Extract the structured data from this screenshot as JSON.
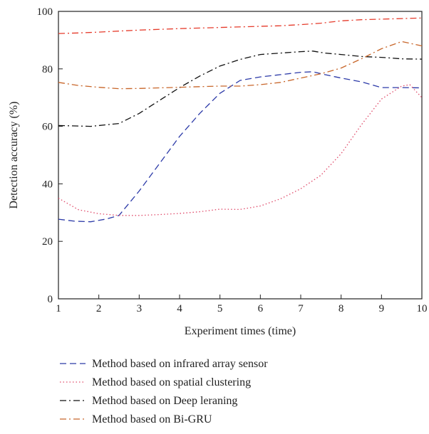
{
  "chart_data": {
    "type": "line",
    "xlabel": "Experiment times (time)",
    "ylabel": "Detection accuracy (%)",
    "xlim": [
      1,
      10
    ],
    "ylim": [
      0,
      100
    ],
    "xticks": [
      1,
      2,
      3,
      4,
      5,
      6,
      7,
      8,
      9,
      10
    ],
    "yticks": [
      0,
      20,
      40,
      60,
      80,
      100
    ],
    "grid": false,
    "legend_position": "bottom",
    "series": [
      {
        "name": "Method based on infrared array sensor",
        "color": "#2c3aa8",
        "dash": "dashed",
        "x": [
          1,
          1.4,
          1.8,
          2.2,
          2.5,
          3,
          3.5,
          4,
          4.5,
          5,
          5.5,
          6,
          6.5,
          7,
          7.3,
          7.6,
          8,
          8.5,
          9,
          9.5,
          10
        ],
        "y": [
          27.7,
          27.0,
          26.8,
          27.8,
          29.0,
          37.5,
          47.0,
          56.5,
          64.5,
          71.5,
          76.0,
          77.2,
          78.0,
          78.8,
          79.0,
          78.0,
          76.8,
          75.5,
          73.5,
          73.5,
          73.4
        ]
      },
      {
        "name": "Method based on spatial clustering",
        "color": "#e04a6a",
        "dash": "dotted",
        "x": [
          1,
          1.5,
          2,
          2.5,
          3,
          3.5,
          4,
          4.5,
          5,
          5.5,
          6,
          6.5,
          7,
          7.5,
          8,
          8.5,
          9,
          9.5,
          9.7,
          10
        ],
        "y": [
          35.0,
          31.0,
          29.6,
          29.0,
          29.0,
          29.3,
          29.7,
          30.3,
          31.2,
          31.1,
          32.3,
          34.8,
          38.3,
          43.0,
          50.5,
          60.5,
          69.5,
          74.0,
          74.5,
          70.0
        ]
      },
      {
        "name": "Method based on Deep leraning",
        "color": "#111111",
        "dash": "dashdot",
        "x": [
          1,
          1.8,
          2.5,
          3,
          3.5,
          4,
          4.5,
          5,
          5.5,
          6,
          6.5,
          7,
          7.3,
          7.6,
          8,
          8.5,
          9,
          9.5,
          10
        ],
        "y": [
          60.3,
          60.0,
          61.0,
          64.5,
          69.0,
          73.5,
          77.5,
          81.0,
          83.3,
          85.0,
          85.5,
          86.0,
          86.2,
          85.5,
          85.0,
          84.3,
          84.0,
          83.5,
          83.4
        ]
      },
      {
        "name": "Method based on Bi-GRU",
        "color": "#c8662a",
        "dash": "dashdot",
        "x": [
          1,
          1.5,
          2,
          2.5,
          3,
          3.5,
          4,
          4.5,
          5,
          5.5,
          6,
          6.5,
          7,
          7.5,
          8,
          8.5,
          9,
          9.5,
          10
        ],
        "y": [
          75.3,
          74.2,
          73.6,
          73.1,
          73.2,
          73.4,
          73.6,
          73.8,
          74.0,
          74.0,
          74.5,
          75.3,
          76.8,
          78.3,
          80.3,
          83.5,
          87.0,
          89.5,
          88.0
        ]
      },
      {
        "name": "",
        "color": "#e53a2a",
        "dash": "dashdot",
        "x": [
          1,
          1.5,
          2,
          3,
          4,
          5,
          6,
          6.5,
          7,
          7.5,
          8,
          8.5,
          9,
          9.5,
          10
        ],
        "y": [
          92.3,
          92.5,
          92.8,
          93.5,
          94.0,
          94.4,
          94.8,
          95.0,
          95.4,
          95.9,
          96.7,
          97.1,
          97.3,
          97.5,
          97.7
        ]
      }
    ]
  }
}
